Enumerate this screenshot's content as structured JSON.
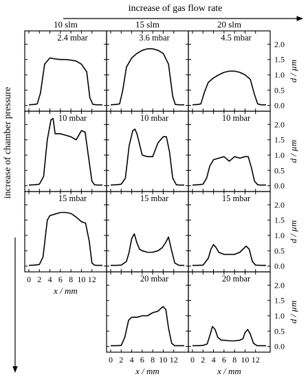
{
  "figure": {
    "top_label": "increase of gas flow rate",
    "left_label": "increase of chamber pressure"
  },
  "chart_data": {
    "type": "line",
    "xlabel": "x / mm",
    "ylabel": "d / µm",
    "xlim": [
      0,
      14
    ],
    "ylim": [
      -0.1,
      2.3
    ],
    "x_ticks": [
      0,
      2,
      4,
      6,
      8,
      10,
      12
    ],
    "y_ticks": [
      0.0,
      0.5,
      1.0,
      1.5,
      2.0
    ],
    "grid": false,
    "column_labels": [
      "10 slm",
      "15 slm",
      "20 slm"
    ],
    "panels": [
      {
        "row": 0,
        "col": 0,
        "label": "2.4 mbar",
        "x": [
          0,
          1,
          1.6,
          2.2,
          3,
          4,
          5,
          6,
          7,
          8,
          9,
          10,
          11,
          11.6,
          12.2,
          13,
          14
        ],
        "y": [
          0.02,
          0.03,
          0.05,
          0.4,
          1.35,
          1.55,
          1.52,
          1.5,
          1.5,
          1.48,
          1.45,
          1.35,
          1.1,
          0.25,
          0.03,
          0.02,
          0.02
        ]
      },
      {
        "row": 0,
        "col": 1,
        "label": "3.6 mbar",
        "x": [
          0,
          1,
          1.7,
          2.3,
          3,
          4,
          5,
          6,
          7,
          8,
          9,
          10,
          11,
          11.8,
          12.3,
          13,
          14
        ],
        "y": [
          0.02,
          0.03,
          0.05,
          0.5,
          1.25,
          1.55,
          1.7,
          1.8,
          1.85,
          1.85,
          1.8,
          1.7,
          1.35,
          0.3,
          0.03,
          0.02,
          0.02
        ]
      },
      {
        "row": 0,
        "col": 2,
        "label": "4.5 mbar",
        "x": [
          0,
          1,
          1.6,
          2.3,
          3,
          4,
          5,
          6,
          7,
          8,
          9,
          10,
          11,
          11.8,
          12.4,
          13,
          14
        ],
        "y": [
          0.02,
          0.03,
          0.05,
          0.45,
          0.75,
          0.9,
          1.0,
          1.08,
          1.12,
          1.12,
          1.08,
          1.0,
          0.85,
          0.35,
          0.05,
          0.02,
          0.02
        ]
      },
      {
        "row": 1,
        "col": 0,
        "label": "10 mbar",
        "x": [
          0,
          1,
          2,
          2.8,
          3.5,
          4.2,
          4.6,
          5,
          6,
          7,
          8,
          9,
          10,
          10.7,
          11.3,
          12,
          12.5,
          13,
          14
        ],
        "y": [
          0.02,
          0.03,
          0.05,
          0.3,
          1.5,
          2.15,
          2.2,
          1.7,
          1.7,
          1.65,
          1.6,
          1.5,
          1.8,
          1.75,
          1.0,
          0.15,
          0.03,
          0.02,
          0.02
        ]
      },
      {
        "row": 1,
        "col": 1,
        "label": "10 mbar",
        "x": [
          0,
          1,
          2,
          2.8,
          3.5,
          4.2,
          4.6,
          5,
          6,
          7,
          8,
          9,
          10,
          10.6,
          11.2,
          11.8,
          12.5,
          13,
          14
        ],
        "y": [
          0.02,
          0.03,
          0.05,
          0.25,
          1.3,
          1.8,
          1.85,
          1.7,
          1.0,
          0.95,
          0.95,
          1.4,
          1.6,
          1.6,
          1.1,
          0.25,
          0.03,
          0.02,
          0.02
        ]
      },
      {
        "row": 1,
        "col": 2,
        "label": "10 mbar",
        "x": [
          0,
          1,
          2,
          2.7,
          3.3,
          4,
          5,
          6,
          7,
          8,
          9,
          10,
          10.6,
          11.2,
          11.8,
          12.4,
          13,
          14
        ],
        "y": [
          0.02,
          0.03,
          0.05,
          0.25,
          0.65,
          0.85,
          0.9,
          0.95,
          0.8,
          0.95,
          0.9,
          0.95,
          0.95,
          0.6,
          0.15,
          0.03,
          0.02,
          0.02
        ]
      },
      {
        "row": 2,
        "col": 0,
        "label": "15 mbar",
        "x": [
          0,
          1,
          2,
          2.7,
          3.5,
          4,
          5,
          6,
          7,
          8,
          9,
          10,
          10.8,
          11.5,
          12,
          12.5,
          13,
          14
        ],
        "y": [
          0.02,
          0.03,
          0.05,
          0.3,
          1.5,
          1.65,
          1.7,
          1.75,
          1.75,
          1.72,
          1.6,
          1.45,
          1.4,
          0.8,
          0.1,
          0.03,
          0.02,
          0.02
        ]
      },
      {
        "row": 2,
        "col": 1,
        "label": "15 mbar",
        "x": [
          0,
          1,
          2,
          3,
          3.5,
          4,
          4.5,
          5,
          5.5,
          6,
          7,
          8,
          9,
          9.8,
          10.4,
          11,
          11.6,
          12.2,
          13,
          14
        ],
        "y": [
          0.02,
          0.02,
          0.03,
          0.15,
          0.45,
          0.9,
          1.05,
          0.75,
          0.55,
          0.5,
          0.45,
          0.45,
          0.5,
          0.6,
          0.75,
          0.95,
          0.5,
          0.1,
          0.02,
          0.02
        ]
      },
      {
        "row": 2,
        "col": 2,
        "label": "15 mbar",
        "x": [
          0,
          1,
          2,
          3,
          3.5,
          4,
          4.5,
          5,
          6,
          7,
          8,
          9,
          9.6,
          10.2,
          10.8,
          11.4,
          12,
          13,
          14
        ],
        "y": [
          0.02,
          0.02,
          0.03,
          0.25,
          0.55,
          0.7,
          0.6,
          0.45,
          0.38,
          0.38,
          0.38,
          0.45,
          0.55,
          0.65,
          0.55,
          0.15,
          0.03,
          0.02,
          0.02
        ]
      },
      {
        "row": 3,
        "col": 1,
        "label": "20 mbar",
        "x": [
          0,
          1,
          2,
          2.7,
          3.4,
          4,
          5,
          6,
          7,
          8,
          9,
          9.6,
          10,
          10.5,
          11,
          11.6,
          12.2,
          13,
          14
        ],
        "y": [
          0.02,
          0.02,
          0.03,
          0.3,
          0.85,
          0.95,
          0.95,
          1.0,
          1.0,
          1.1,
          1.15,
          1.25,
          1.3,
          1.2,
          0.6,
          0.1,
          0.02,
          0.02,
          0.02
        ]
      },
      {
        "row": 3,
        "col": 2,
        "label": "20 mbar",
        "x": [
          0,
          1,
          2,
          2.8,
          3.3,
          3.8,
          4.3,
          4.8,
          5.5,
          6,
          7,
          8,
          9,
          9.6,
          10,
          10.5,
          11,
          11.6,
          12.3,
          13,
          14
        ],
        "y": [
          0.02,
          0.02,
          0.03,
          0.08,
          0.35,
          0.65,
          0.55,
          0.3,
          0.2,
          0.2,
          0.18,
          0.18,
          0.2,
          0.25,
          0.45,
          0.55,
          0.4,
          0.1,
          0.02,
          0.02,
          0.02
        ]
      }
    ]
  }
}
